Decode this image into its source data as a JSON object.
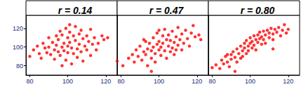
{
  "chart_data": [
    {
      "type": "scatter",
      "title": "r = 0.14",
      "color": "#ff0000",
      "grid": false,
      "xlim": [
        78,
        126
      ],
      "ylim": [
        70,
        134
      ],
      "xticks": [
        80,
        100,
        120
      ],
      "yticks": [
        80,
        100,
        120
      ],
      "x": [
        80,
        82,
        84,
        85,
        86,
        87,
        88,
        89,
        90,
        90,
        91,
        92,
        93,
        93,
        94,
        95,
        95,
        96,
        96,
        97,
        97,
        98,
        98,
        99,
        99,
        100,
        100,
        100,
        101,
        101,
        102,
        102,
        103,
        103,
        104,
        104,
        105,
        105,
        106,
        106,
        107,
        107,
        108,
        108,
        109,
        110,
        110,
        111,
        112,
        112,
        113,
        114,
        115,
        116,
        118,
        119,
        121,
        97,
        94,
        101
      ],
      "values": [
        90,
        97,
        101,
        93,
        88,
        104,
        99,
        94,
        100,
        110,
        92,
        105,
        97,
        87,
        102,
        108,
        95,
        117,
        91,
        100,
        113,
        104,
        96,
        120,
        86,
        101,
        110,
        94,
        105,
        116,
        99,
        82,
        112,
        93,
        107,
        122,
        98,
        89,
        114,
        103,
        118,
        95,
        109,
        85,
        101,
        112,
        97,
        106,
        91,
        119,
        103,
        110,
        97,
        104,
        112,
        108,
        110,
        80,
        112,
        124
      ]
    },
    {
      "type": "scatter",
      "title": "r = 0.47",
      "color": "#ff0000",
      "grid": false,
      "tick_labels": "x",
      "xlim": [
        78,
        126
      ],
      "ylim": [
        70,
        134
      ],
      "xticks": [
        80,
        100,
        120
      ],
      "yticks": [
        80,
        100,
        120
      ],
      "x": [
        78,
        81,
        84,
        86,
        87,
        88,
        89,
        90,
        91,
        92,
        92,
        93,
        94,
        94,
        95,
        96,
        96,
        97,
        97,
        98,
        98,
        99,
        99,
        100,
        100,
        101,
        101,
        102,
        102,
        103,
        103,
        104,
        104,
        105,
        105,
        106,
        106,
        107,
        107,
        108,
        108,
        109,
        110,
        110,
        111,
        112,
        112,
        113,
        114,
        115,
        116,
        117,
        118,
        119,
        121,
        122,
        96,
        93,
        100,
        109
      ],
      "values": [
        85,
        80,
        88,
        92,
        84,
        97,
        90,
        101,
        86,
        95,
        108,
        92,
        98,
        80,
        104,
        88,
        96,
        110,
        100,
        93,
        84,
        103,
        115,
        97,
        106,
        91,
        100,
        112,
        104,
        96,
        119,
        108,
        88,
        101,
        113,
        95,
        107,
        117,
        99,
        105,
        92,
        111,
        102,
        121,
        108,
        97,
        114,
        104,
        118,
        109,
        101,
        115,
        123,
        111,
        113,
        108,
        74,
        106,
        118,
        97
      ]
    },
    {
      "type": "scatter",
      "title": "r = 0.80",
      "color": "#ff0000",
      "grid": false,
      "tick_labels": "x",
      "xlim": [
        78,
        126
      ],
      "ylim": [
        70,
        134
      ],
      "xticks": [
        80,
        100,
        120
      ],
      "yticks": [
        80,
        100,
        120
      ],
      "x": [
        80,
        82,
        84,
        85,
        86,
        87,
        88,
        89,
        90,
        90,
        91,
        92,
        93,
        93,
        94,
        95,
        95,
        96,
        96,
        97,
        97,
        98,
        98,
        99,
        99,
        100,
        100,
        101,
        101,
        102,
        102,
        103,
        103,
        104,
        104,
        105,
        105,
        106,
        106,
        107,
        107,
        108,
        108,
        109,
        110,
        110,
        111,
        112,
        112,
        113,
        114,
        115,
        116,
        117,
        118,
        119,
        120,
        112,
        92,
        88
      ],
      "values": [
        78,
        81,
        77,
        86,
        82,
        90,
        84,
        79,
        92,
        87,
        95,
        89,
        84,
        98,
        93,
        88,
        101,
        96,
        90,
        104,
        99,
        93,
        107,
        101,
        96,
        104,
        110,
        99,
        106,
        102,
        112,
        108,
        97,
        113,
        105,
        109,
        116,
        103,
        111,
        117,
        108,
        113,
        104,
        118,
        110,
        115,
        120,
        114,
        108,
        119,
        116,
        121,
        112,
        118,
        124,
        115,
        119,
        98,
        74,
        92
      ]
    }
  ]
}
